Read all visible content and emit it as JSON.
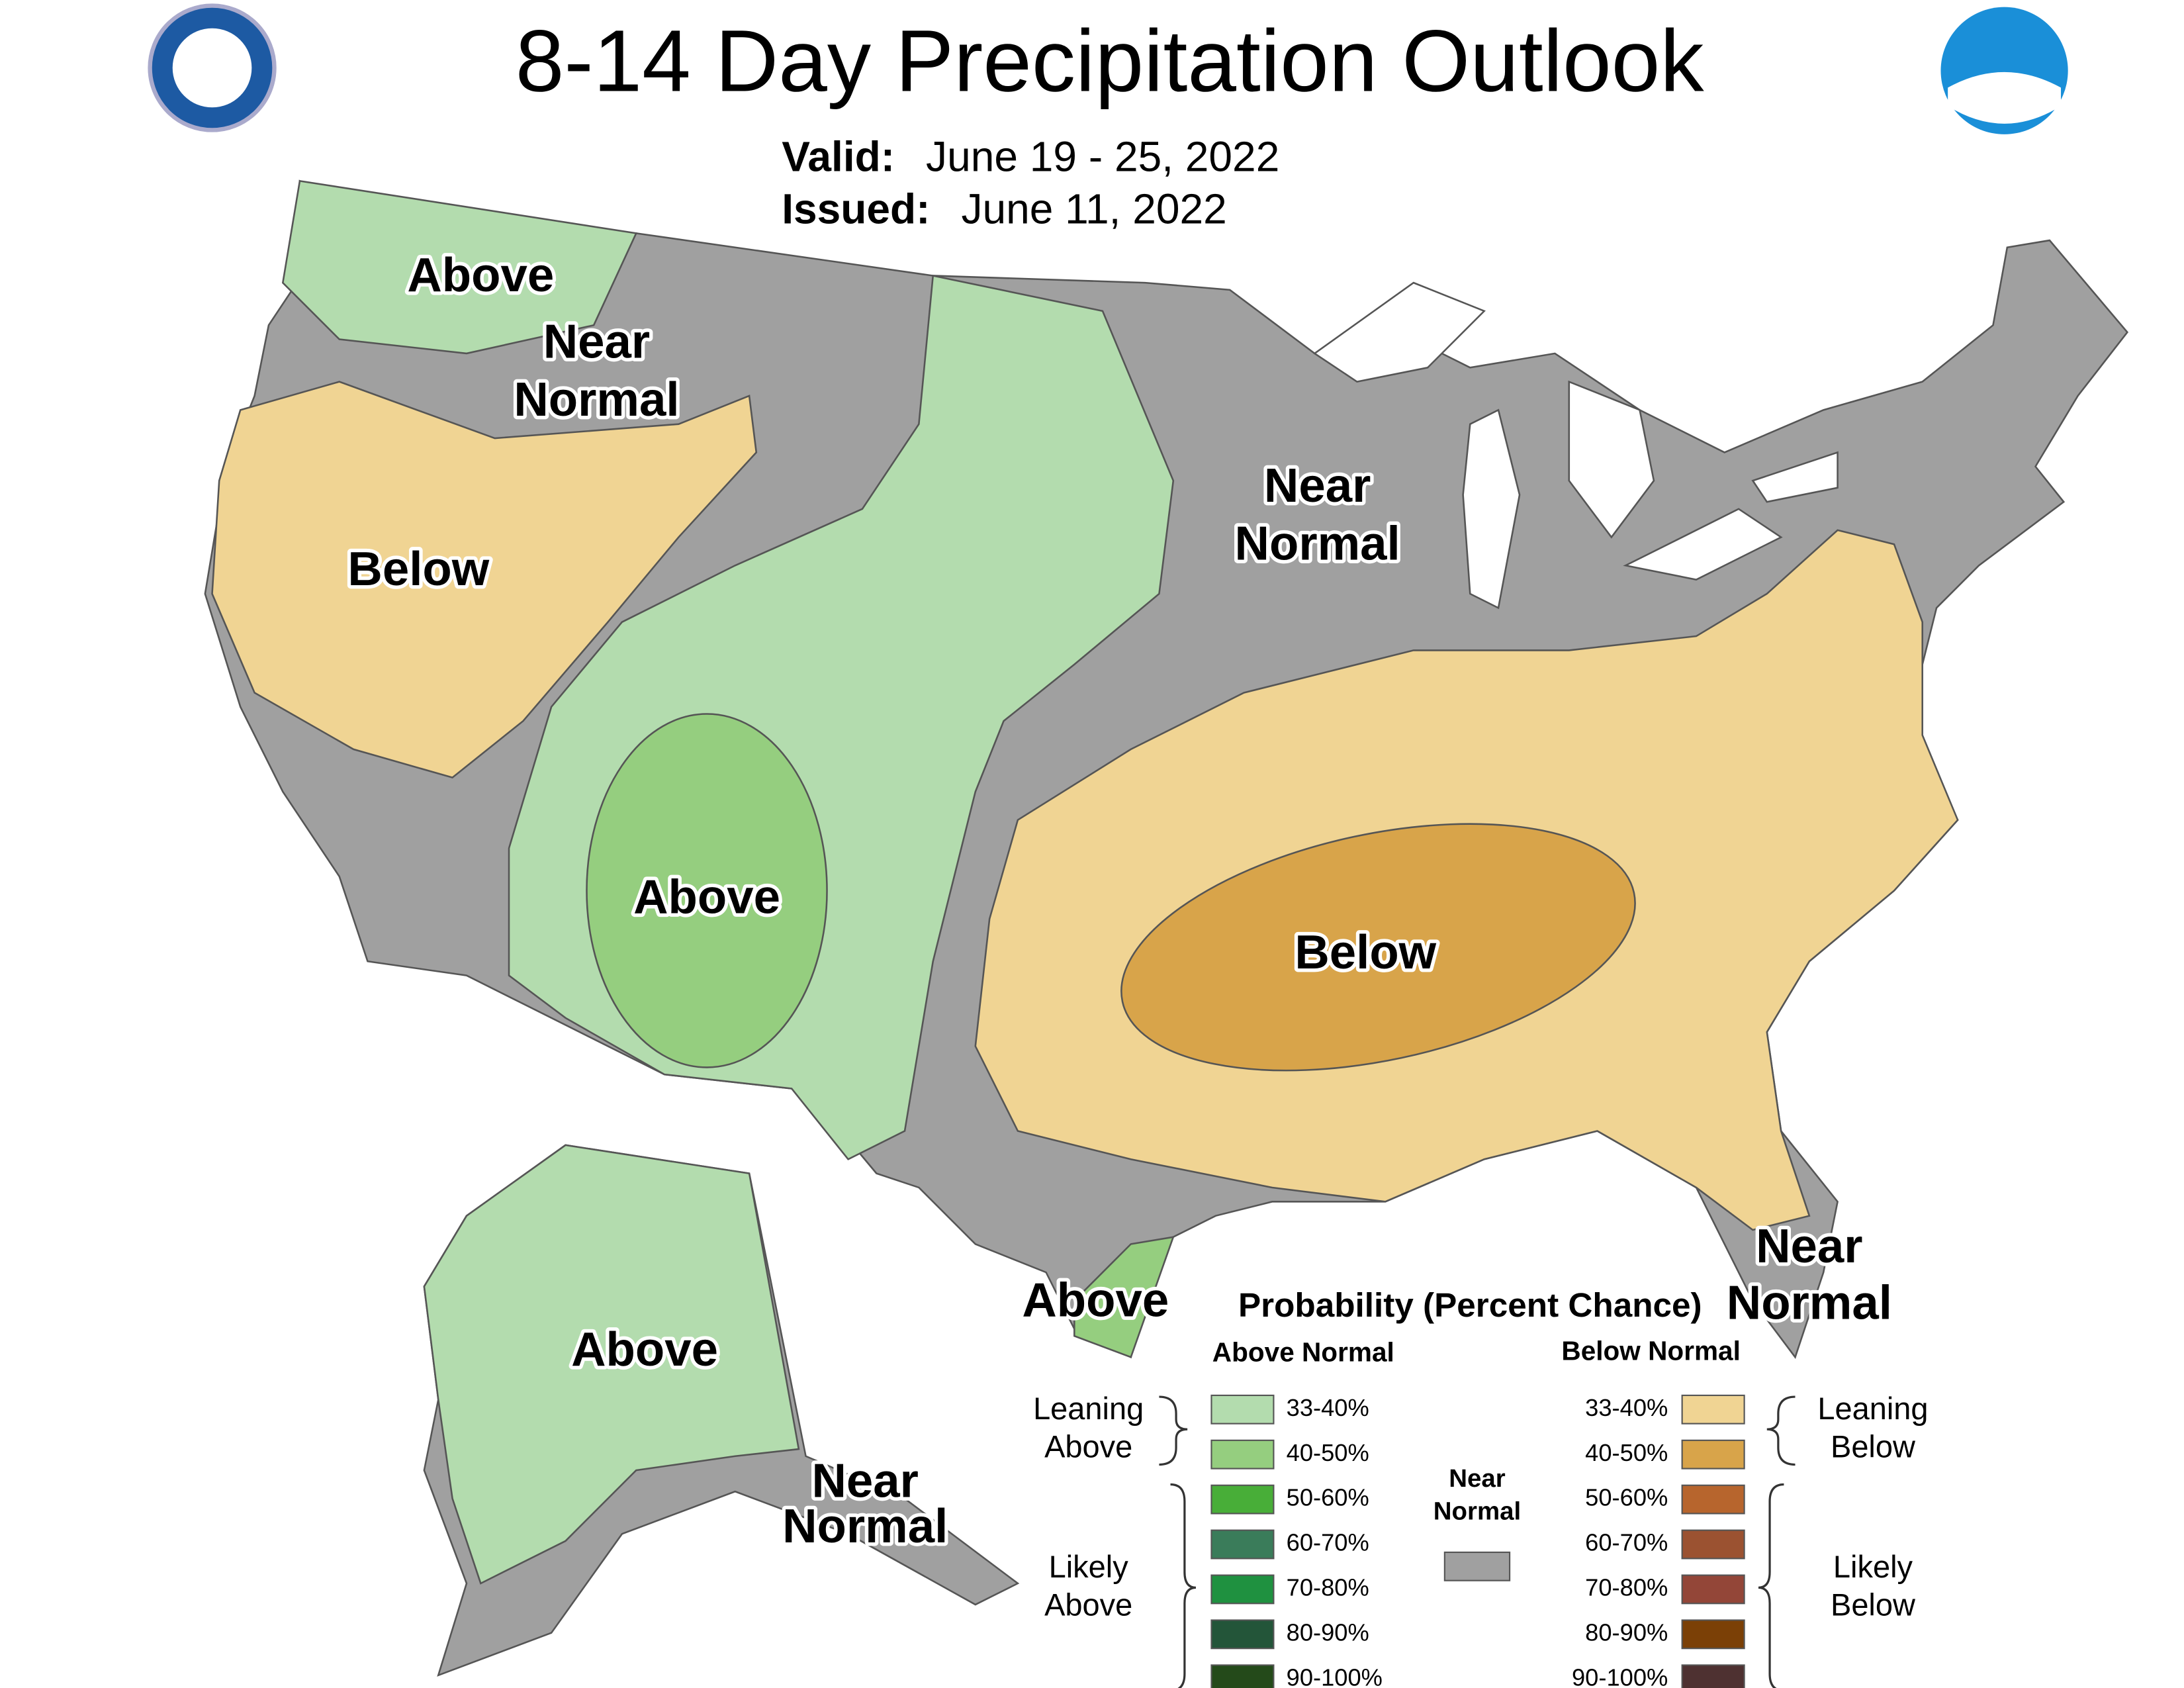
{
  "header": {
    "title": "8-14 Day Precipitation Outlook",
    "valid_label": "Valid:",
    "valid_dates": "June 19 - 25, 2022",
    "issued_label": "Issued:",
    "issued_date": "June 11, 2022"
  },
  "map": {
    "labels": [
      {
        "lines": [
          "Above"
        ]
      },
      {
        "lines": [
          "Near",
          "Normal"
        ]
      },
      {
        "lines": [
          "Below"
        ]
      },
      {
        "lines": [
          "Near",
          "Normal"
        ]
      },
      {
        "lines": [
          "Above"
        ]
      },
      {
        "lines": [
          "Below"
        ]
      },
      {
        "lines": [
          "Near",
          "Normal"
        ]
      },
      {
        "lines": [
          "Above"
        ]
      },
      {
        "lines": [
          "Above"
        ]
      },
      {
        "lines": [
          "Near",
          "Normal"
        ]
      }
    ]
  },
  "legend": {
    "title": "Probability (Percent Chance)",
    "above_header": "Above Normal",
    "below_header": "Below Normal",
    "near_header": [
      "Near",
      "Normal"
    ],
    "above": [
      {
        "label": "33-40%",
        "color": "#b3dcae"
      },
      {
        "label": "40-50%",
        "color": "#95ce7f"
      },
      {
        "label": "50-60%",
        "color": "#48ae38"
      },
      {
        "label": "60-70%",
        "color": "#3a7c5a"
      },
      {
        "label": "70-80%",
        "color": "#1f9140"
      },
      {
        "label": "80-90%",
        "color": "#235539"
      },
      {
        "label": "90-100%",
        "color": "#244a1a"
      }
    ],
    "below": [
      {
        "label": "33-40%",
        "color": "#f0d493"
      },
      {
        "label": "40-50%",
        "color": "#d8a44a"
      },
      {
        "label": "50-60%",
        "color": "#b7652d"
      },
      {
        "label": "60-70%",
        "color": "#9b5231"
      },
      {
        "label": "70-80%",
        "color": "#934638"
      },
      {
        "label": "80-90%",
        "color": "#7b4006"
      },
      {
        "label": "90-100%",
        "color": "#4e3131"
      }
    ],
    "leaning_above": [
      "Leaning",
      "Above"
    ],
    "likely_above": [
      "Likely",
      "Above"
    ],
    "leaning_below": [
      "Leaning",
      "Below"
    ],
    "likely_below": [
      "Likely",
      "Below"
    ]
  }
}
